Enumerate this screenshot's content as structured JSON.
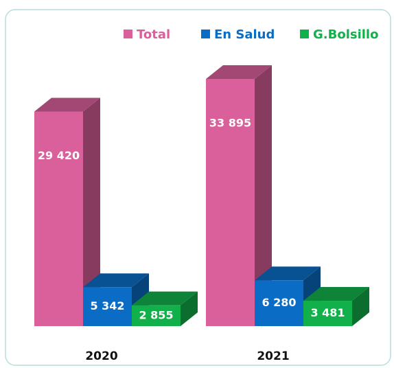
{
  "chart_data": {
    "type": "bar3d",
    "categories": [
      "2020",
      "2021"
    ],
    "series": [
      {
        "name": "Total",
        "color": "#d9609a",
        "values": [
          29420,
          33895
        ],
        "value_labels": [
          "29 420",
          "33 895"
        ]
      },
      {
        "name": "En Salud",
        "color": "#0a6cc4",
        "values": [
          5342,
          6280
        ],
        "value_labels": [
          "5 342",
          "6 280"
        ]
      },
      {
        "name": "G.Bolsillo",
        "color": "#12b04a",
        "values": [
          2855,
          3481
        ],
        "value_labels": [
          "2 855",
          "3 481"
        ]
      }
    ]
  }
}
